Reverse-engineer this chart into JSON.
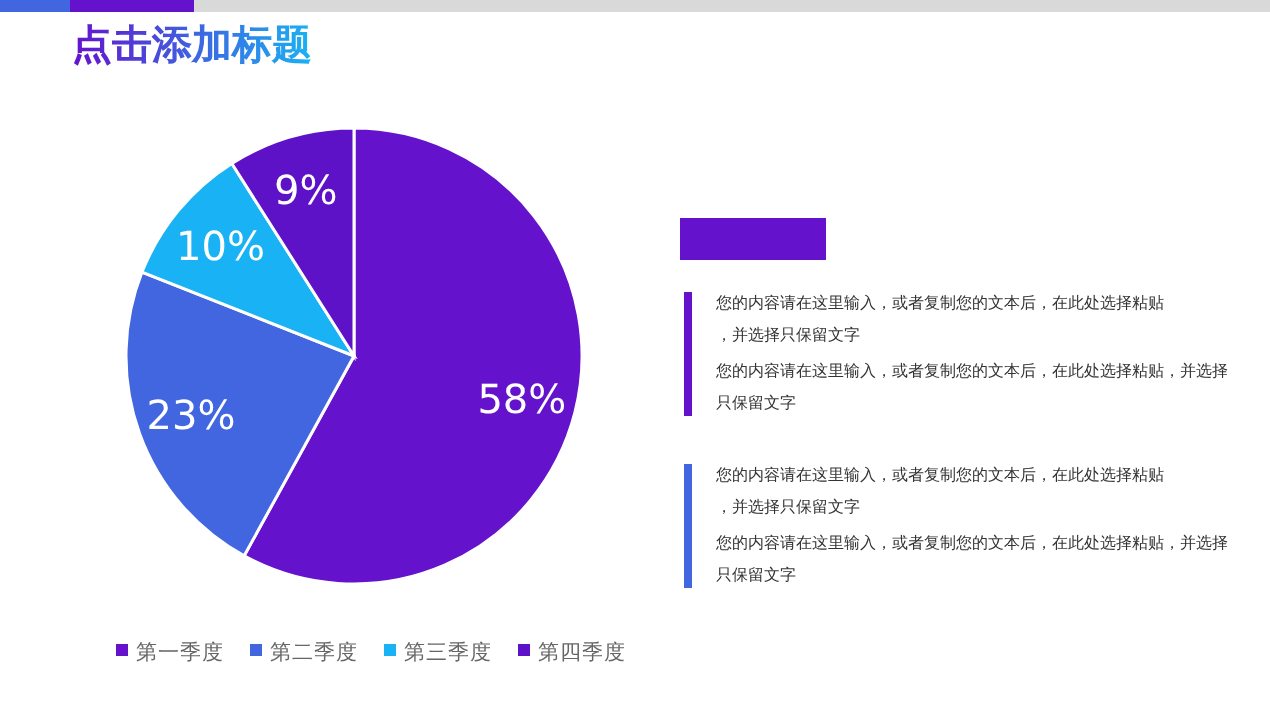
{
  "chart_data": {
    "type": "pie",
    "title": "点击添加标题",
    "categories": [
      "第一季度",
      "第二季度",
      "第三季度",
      "第四季度"
    ],
    "values": [
      58,
      23,
      10,
      9
    ],
    "colors": [
      "#6512cc",
      "#4166e0",
      "#19b2f4",
      "#5e12c8"
    ],
    "value_labels": [
      "58%",
      "23%",
      "10%",
      "9%"
    ],
    "legend": "bottom",
    "annotations": [
      "您的内容请在这里输入，或者复制您的文本后，在此处选择粘贴，并选择只保留文字",
      "您的内容请在这里输入，或者复制您的文本后，在此处选择粘贴，并选择只保留文字",
      "您的内容请在这里输入，或者复制您的文本后，在此处选择粘贴，并选择只保留文字",
      "您的内容请在这里输入，或者复制您的文本后，在此处选择粘贴，并选择只保留文字"
    ]
  }
}
